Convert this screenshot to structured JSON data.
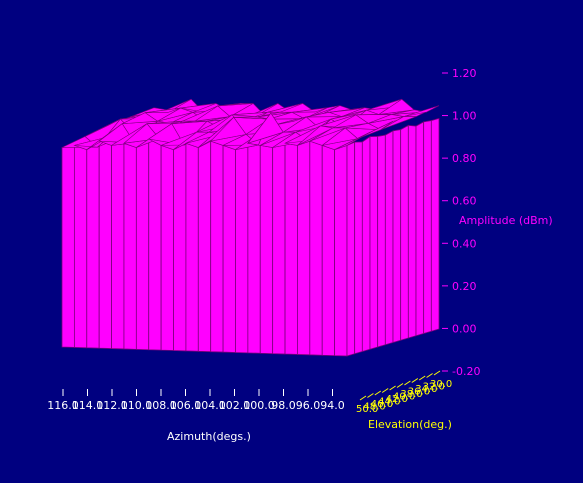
{
  "chart_data": {
    "type": "surface",
    "title": "",
    "z_axis": {
      "label": "Amplitude (dBm)",
      "ticks": [
        "1.20",
        "1.00",
        "0.80",
        "0.60",
        "0.40",
        "0.20",
        "0.00",
        "-0.20"
      ],
      "range": [
        -0.2,
        1.2
      ]
    },
    "x_axis": {
      "label": "Azimuth(degs.)",
      "ticks": [
        "116.0",
        "114.0",
        "112.0",
        "110.0",
        "108.0",
        "106.0",
        "104.0",
        "102.0",
        "100.0",
        "98.0",
        "96.0",
        "94.0"
      ],
      "range": [
        93.0,
        116.0
      ]
    },
    "y_axis": {
      "label": "Elevation(deg.)",
      "ticks": [
        "50.0",
        "48.0",
        "46.0",
        "44.0",
        "42.0",
        "40.0",
        "38.0",
        "36.0",
        "34.0",
        "32.0",
        "30.0"
      ],
      "range": [
        30.0,
        50.0
      ]
    },
    "front_edge_values": [
      0.85,
      0.86,
      0.84,
      0.88,
      0.86,
      0.87,
      0.85,
      0.89,
      0.86,
      0.84,
      0.87,
      0.85,
      0.88,
      0.86,
      0.84,
      0.87,
      0.86,
      0.85,
      0.87,
      0.86,
      0.88,
      0.86,
      0.84,
      0.86
    ],
    "peak_value": 0.98,
    "colors": {
      "surface": "#ff00ff",
      "surface_edge": "#7a007a",
      "background": "#000080",
      "amplitude_axis": "#ff00ff",
      "azimuth_axis": "#ffffff",
      "elevation_axis": "#ffff00"
    }
  }
}
